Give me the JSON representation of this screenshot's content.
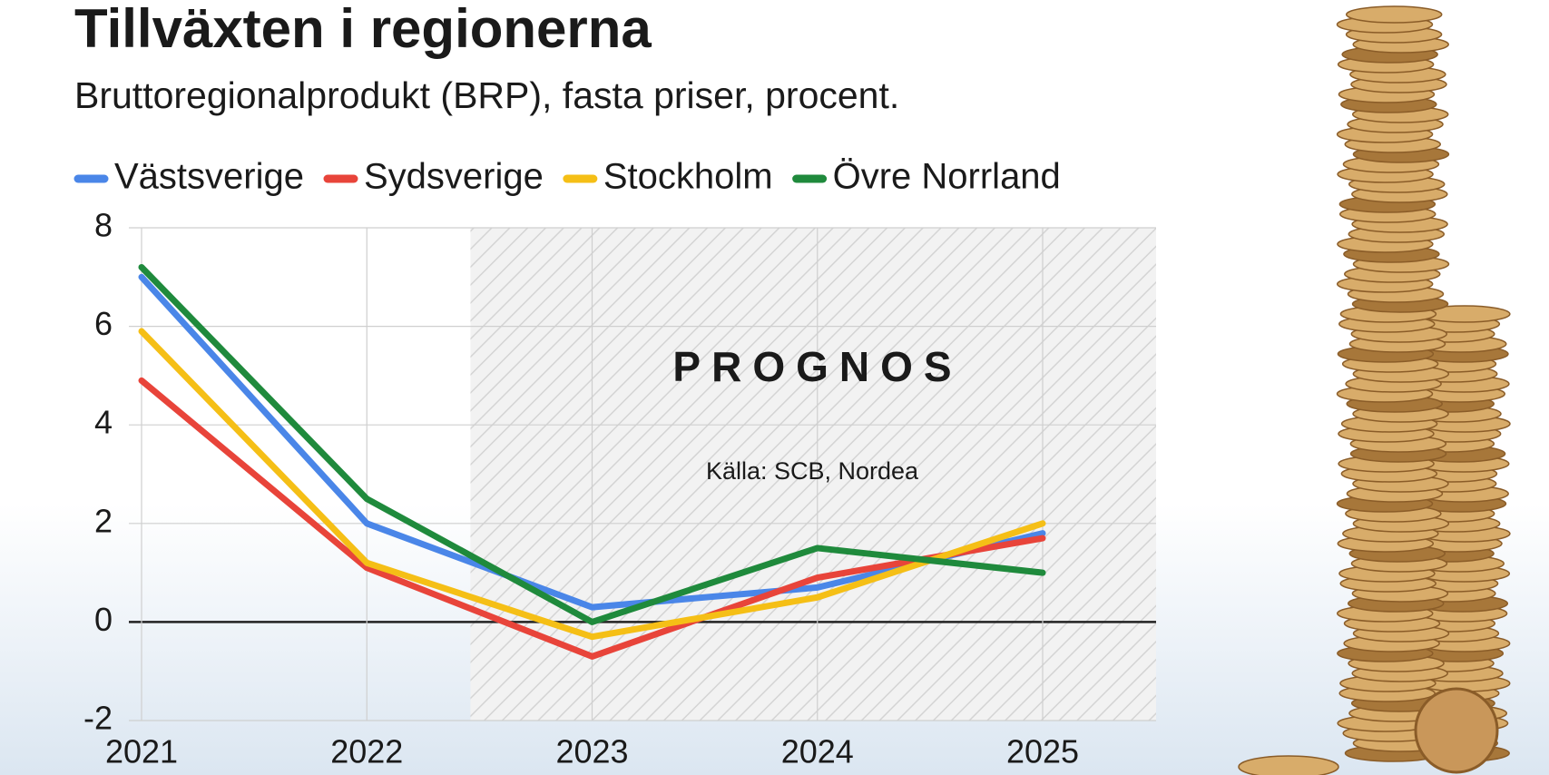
{
  "chart_data": {
    "type": "line",
    "title": "Tillväxten i regionerna",
    "subtitle": "Bruttoregionalprodukt (BRP), fasta priser, procent.",
    "annotations": [
      "PROGNOS",
      "Källa: SCB, Nordea"
    ],
    "categories": [
      "2021",
      "2022",
      "2023",
      "2024",
      "2025"
    ],
    "series": [
      {
        "name": "Västsverige",
        "color": "#4a86e8",
        "values": [
          7.0,
          2.0,
          0.3,
          0.7,
          1.8
        ]
      },
      {
        "name": "Sydsverige",
        "color": "#e8443a",
        "values": [
          4.9,
          1.1,
          -0.7,
          0.9,
          1.7
        ]
      },
      {
        "name": "Stockholm",
        "color": "#f5bf16",
        "values": [
          5.9,
          1.2,
          -0.3,
          0.5,
          2.0
        ]
      },
      {
        "name": "Övre Norrland",
        "color": "#1f8a3c",
        "values": [
          7.2,
          2.5,
          0.0,
          1.5,
          1.0
        ]
      }
    ],
    "ylim": [
      -2,
      8
    ],
    "yticks": [
      -2,
      0,
      2,
      4,
      6,
      8
    ],
    "grid": true,
    "legend": "top"
  }
}
